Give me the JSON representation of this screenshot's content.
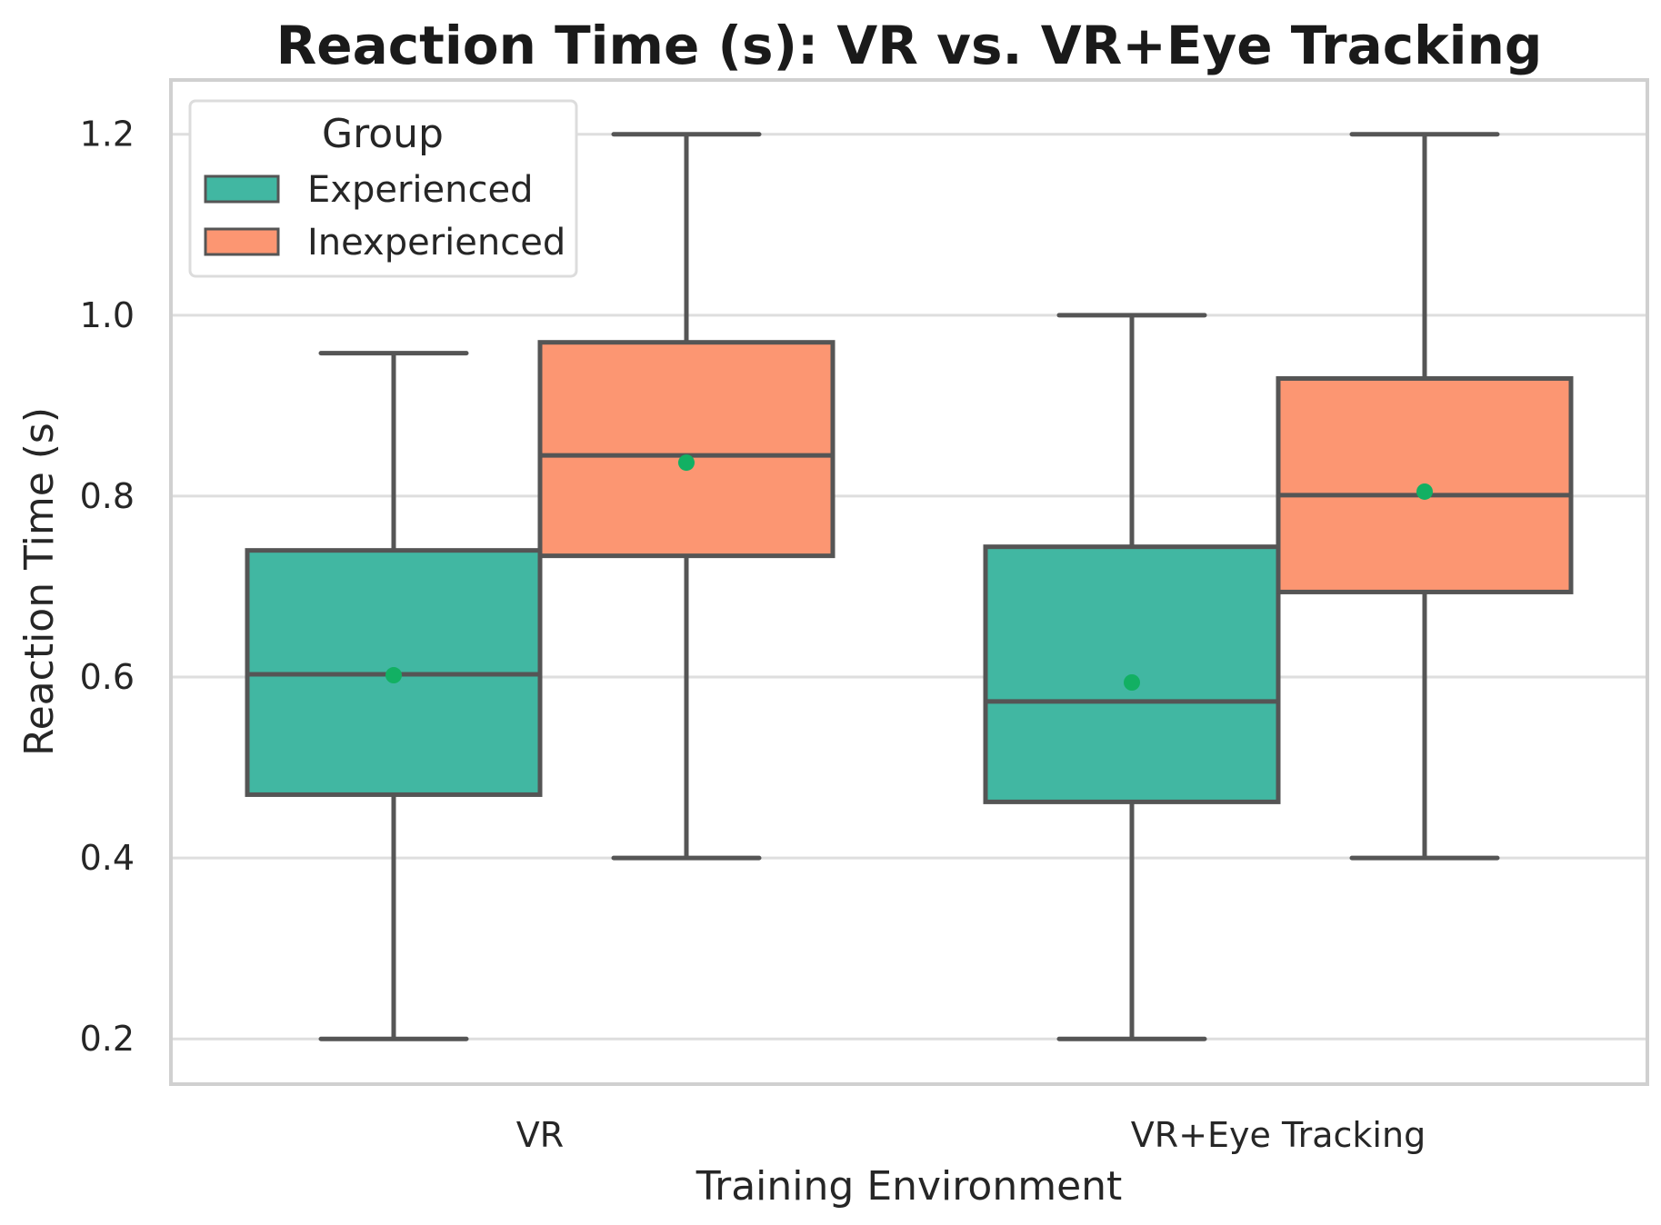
{
  "chart_data": {
    "type": "box",
    "title": "Reaction Time (s): VR vs. VR+Eye Tracking",
    "xlabel": "Training Environment",
    "ylabel": "Reaction Time (s)",
    "ylim": [
      0.15,
      1.26
    ],
    "yticks": [
      0.2,
      0.4,
      0.6,
      0.8,
      1.0,
      1.2
    ],
    "ytick_labels": [
      "0.2",
      "0.4",
      "0.6",
      "0.8",
      "1.0",
      "1.2"
    ],
    "grid": true,
    "categories": [
      "VR",
      "VR+Eye Tracking"
    ],
    "legend": {
      "title": "Group",
      "position": "top-left",
      "entries": [
        "Experienced",
        "Inexperienced"
      ]
    },
    "series": [
      {
        "name": "Experienced",
        "color": "#41b7a2",
        "boxes": [
          {
            "min": 0.2,
            "q1": 0.47,
            "median": 0.603,
            "q3": 0.74,
            "max": 0.958,
            "mean": 0.602
          },
          {
            "min": 0.2,
            "q1": 0.462,
            "median": 0.573,
            "q3": 0.744,
            "max": 1.0,
            "mean": 0.594
          }
        ]
      },
      {
        "name": "Inexperienced",
        "color": "#fc9672",
        "boxes": [
          {
            "min": 0.4,
            "q1": 0.734,
            "median": 0.845,
            "q3": 0.97,
            "max": 1.2,
            "mean": 0.837
          },
          {
            "min": 0.4,
            "q1": 0.694,
            "median": 0.801,
            "q3": 0.93,
            "max": 1.2,
            "mean": 0.805
          }
        ]
      }
    ],
    "mean_marker_color": "#12b063",
    "line_color": "#555555"
  }
}
